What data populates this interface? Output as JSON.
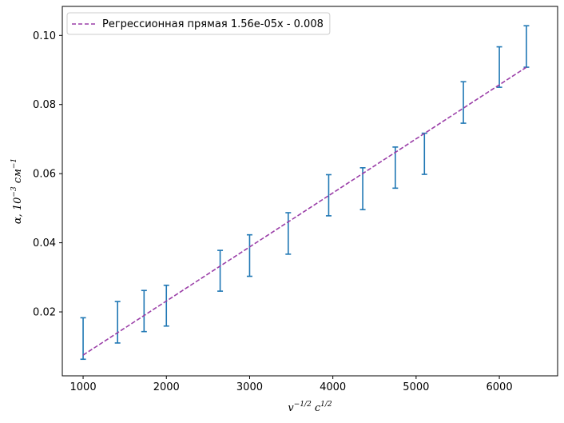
{
  "chart_data": {
    "type": "scatter",
    "title": "",
    "xlabel": {
      "base1": "v",
      "sup1": "−1/2",
      "base2": "c",
      "sup2": "1/2"
    },
    "ylabel": {
      "base1": "α,  10",
      "sup1": "−3",
      "base2": " см",
      "sup2": "−1"
    },
    "xlim": [
      750,
      6700
    ],
    "ylim": [
      0.0015,
      0.1084
    ],
    "xticks": [
      1000,
      2000,
      3000,
      4000,
      5000,
      6000
    ],
    "yticks": [
      0.02,
      0.04,
      0.06,
      0.08,
      0.1
    ],
    "xtick_labels": [
      "1000",
      "2000",
      "3000",
      "4000",
      "5000",
      "6000"
    ],
    "ytick_labels": [
      "0.02",
      "0.04",
      "0.06",
      "0.08",
      "0.10"
    ],
    "error_bars": {
      "color": "#1f77b4",
      "points": [
        {
          "x": 1000,
          "low": 0.0063,
          "high": 0.0183
        },
        {
          "x": 1414,
          "low": 0.011,
          "high": 0.023
        },
        {
          "x": 1732,
          "low": 0.0143,
          "high": 0.0262
        },
        {
          "x": 2000,
          "low": 0.0159,
          "high": 0.0277
        },
        {
          "x": 2646,
          "low": 0.026,
          "high": 0.0378
        },
        {
          "x": 3000,
          "low": 0.0303,
          "high": 0.0423
        },
        {
          "x": 3464,
          "low": 0.0367,
          "high": 0.0487
        },
        {
          "x": 3950,
          "low": 0.0478,
          "high": 0.0597
        },
        {
          "x": 4359,
          "low": 0.0496,
          "high": 0.0617
        },
        {
          "x": 4750,
          "low": 0.0558,
          "high": 0.0677
        },
        {
          "x": 5100,
          "low": 0.0598,
          "high": 0.0717
        },
        {
          "x": 5568,
          "low": 0.0746,
          "high": 0.0866
        },
        {
          "x": 6000,
          "low": 0.085,
          "high": 0.0967
        },
        {
          "x": 6325,
          "low": 0.0908,
          "high": 0.1028
        }
      ]
    },
    "regression": {
      "label": "Регрессионная прямая 1.56e-05x - 0.008",
      "color": "#9b3fa8",
      "x_start": 1000,
      "x_end": 6325,
      "y_start": 0.0075,
      "y_end": 0.0908
    },
    "legend_position": "upper-left",
    "grid": false
  }
}
